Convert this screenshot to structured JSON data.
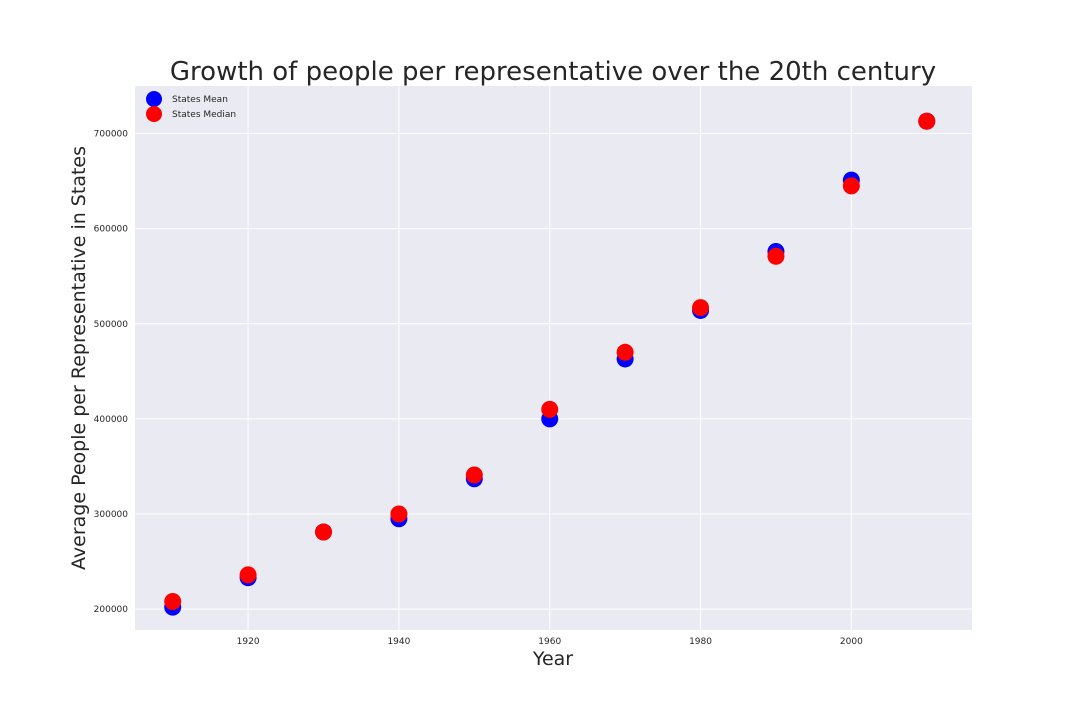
{
  "chart_data": {
    "type": "scatter",
    "title": "Growth of people per representative over the 20th century",
    "xlabel": "Year",
    "ylabel": "Average People per Representative in States",
    "xlim": [
      1905,
      2016
    ],
    "ylim": [
      178000,
      750000
    ],
    "x_ticks": [
      1920,
      1940,
      1960,
      1980,
      2000
    ],
    "y_ticks": [
      200000,
      300000,
      400000,
      500000,
      600000,
      700000
    ],
    "grid": true,
    "legend_position": "top-left",
    "x": [
      1910,
      1920,
      1930,
      1940,
      1950,
      1960,
      1970,
      1980,
      1990,
      2000,
      2010
    ],
    "series": [
      {
        "name": "States Mean",
        "color": "#0000ff",
        "values": [
          202000,
          233000,
          281000,
          295000,
          337000,
          400000,
          463000,
          514000,
          576000,
          651000,
          713000
        ]
      },
      {
        "name": "States Median",
        "color": "#ff0000",
        "values": [
          208000,
          236000,
          281000,
          300000,
          341000,
          410000,
          470000,
          517000,
          571000,
          645000,
          713000
        ]
      }
    ],
    "style": {
      "plot_background": "#eaeaf2",
      "grid_color": "#ffffff",
      "text_color": "#262626"
    }
  }
}
